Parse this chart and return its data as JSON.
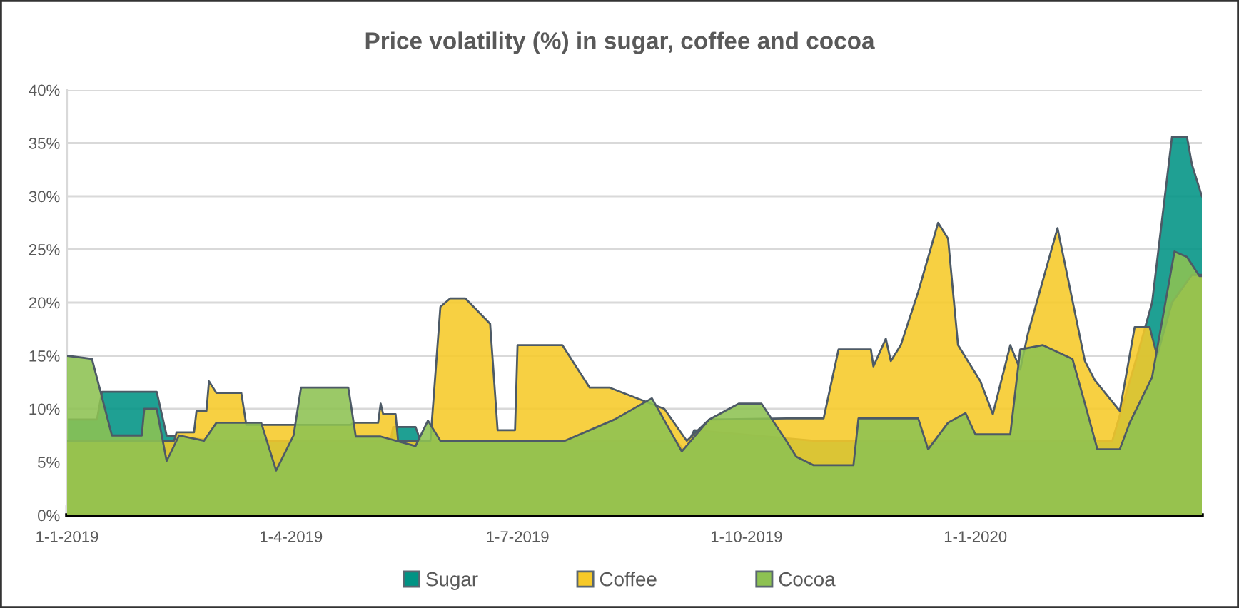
{
  "chart_data": {
    "type": "area",
    "title": "Price volatility (%) in sugar, coffee and cocoa",
    "xlim": [
      "2019-01-01",
      "2020-04-01"
    ],
    "xticks": [
      {
        "value": "2019-01-01",
        "label": "1-1-2019"
      },
      {
        "value": "2019-04-01",
        "label": "1-4-2019"
      },
      {
        "value": "2019-07-01",
        "label": "1-7-2019"
      },
      {
        "value": "2019-10-01",
        "label": "1-10-2019"
      },
      {
        "value": "2020-01-01",
        "label": "1-1-2020"
      }
    ],
    "ylim": [
      0,
      40
    ],
    "yticks": [
      {
        "value": 0,
        "label": "0%"
      },
      {
        "value": 5,
        "label": "5%"
      },
      {
        "value": 10,
        "label": "10%"
      },
      {
        "value": 15,
        "label": "15%"
      },
      {
        "value": 20,
        "label": "20%"
      },
      {
        "value": 25,
        "label": "25%"
      },
      {
        "value": 30,
        "label": "30%"
      },
      {
        "value": 35,
        "label": "35%"
      },
      {
        "value": 40,
        "label": "40%"
      }
    ],
    "grid": "y",
    "legend": "bottom",
    "series": [
      {
        "name": "Sugar",
        "color": "#009384",
        "x": [
          "2019-01-01",
          "2019-01-13",
          "2019-01-15",
          "2019-02-06",
          "2019-02-10",
          "2019-03-02",
          "2019-05-11",
          "2019-05-12",
          "2019-05-21",
          "2019-05-23",
          "2019-09-03",
          "2019-09-06",
          "2019-09-10",
          "2019-10-28",
          "2020-02-25",
          "2020-03-06",
          "2020-03-12",
          "2020-03-20",
          "2020-03-26",
          "2020-03-28",
          "2020-04-01"
        ],
        "values": [
          9,
          9,
          11.6,
          11.6,
          7.5,
          7,
          7,
          8.3,
          8.3,
          7,
          7,
          6,
          8,
          7,
          7,
          15,
          20,
          35.6,
          35.6,
          33,
          30
        ]
      },
      {
        "name": "Coffee",
        "color": "#f6c928",
        "x": [
          "2019-01-01",
          "2019-02-13",
          "2019-02-14",
          "2019-02-21",
          "2019-02-22",
          "2019-02-26",
          "2019-02-27",
          "2019-03-02",
          "2019-03-12",
          "2019-03-14",
          "2019-04-25",
          "2019-04-26",
          "2019-05-06",
          "2019-05-07",
          "2019-05-08",
          "2019-05-13",
          "2019-05-14",
          "2019-05-27",
          "2019-05-31",
          "2019-06-04",
          "2019-06-10",
          "2019-06-20",
          "2019-06-23",
          "2019-06-30",
          "2019-07-01",
          "2019-07-19",
          "2019-07-30",
          "2019-08-07",
          "2019-08-29",
          "2019-09-07",
          "2019-09-16",
          "2019-10-17",
          "2019-11-01",
          "2019-11-07",
          "2019-11-20",
          "2019-11-21",
          "2019-11-26",
          "2019-11-28",
          "2019-12-02",
          "2019-12-09",
          "2019-12-17",
          "2019-12-21",
          "2019-12-25",
          "2020-01-03",
          "2020-01-08",
          "2020-01-15",
          "2020-01-19",
          "2020-01-22",
          "2020-02-03",
          "2020-02-14",
          "2020-02-18",
          "2020-02-28",
          "2020-03-05",
          "2020-03-11",
          "2020-03-14",
          "2020-03-20",
          "2020-03-28",
          "2020-04-01"
        ],
        "values": [
          7,
          7,
          7.8,
          7.8,
          9.8,
          9.8,
          12.6,
          11.5,
          11.5,
          8.5,
          8.5,
          8.7,
          8.7,
          10.5,
          9.5,
          9.5,
          7,
          7,
          19.6,
          20.4,
          20.4,
          18,
          8,
          8,
          16,
          16,
          12,
          12,
          10,
          7,
          9,
          9.1,
          9.1,
          15.6,
          15.6,
          14,
          16.6,
          14.5,
          16,
          21,
          27.5,
          26,
          16,
          12.6,
          9.5,
          16,
          13.7,
          17,
          27,
          14.5,
          12.7,
          9.8,
          17.7,
          17.7,
          15,
          20,
          22.6,
          22.6
        ]
      },
      {
        "name": "Cocoa",
        "color": "#8dc152",
        "x": [
          "2019-01-01",
          "2019-01-11",
          "2019-01-14",
          "2019-01-19",
          "2019-01-31",
          "2019-02-01",
          "2019-02-06",
          "2019-02-10",
          "2019-02-15",
          "2019-02-25",
          "2019-03-02",
          "2019-03-20",
          "2019-03-26",
          "2019-04-02",
          "2019-04-05",
          "2019-04-24",
          "2019-04-27",
          "2019-05-07",
          "2019-05-21",
          "2019-05-26",
          "2019-05-31",
          "2019-07-20",
          "2019-08-09",
          "2019-08-24",
          "2019-09-05",
          "2019-09-16",
          "2019-09-28",
          "2019-10-07",
          "2019-10-17",
          "2019-10-21",
          "2019-10-28",
          "2019-11-13",
          "2019-11-15",
          "2019-12-09",
          "2019-12-13",
          "2019-12-21",
          "2019-12-28",
          "2020-01-01",
          "2020-01-15",
          "2020-01-19",
          "2020-01-28",
          "2020-02-09",
          "2020-02-14",
          "2020-02-19",
          "2020-02-28",
          "2020-03-03",
          "2020-03-12",
          "2020-03-21",
          "2020-03-26",
          "2020-03-31",
          "2020-04-01"
        ],
        "values": [
          15,
          14.7,
          12,
          7.5,
          7.5,
          10,
          10,
          5.1,
          7.5,
          7,
          8.7,
          8.7,
          4.2,
          7.5,
          12,
          12,
          7.4,
          7.4,
          6.5,
          8.9,
          7,
          7,
          9,
          11,
          6,
          9,
          10.5,
          10.5,
          7,
          5.5,
          4.7,
          4.7,
          9.1,
          9.1,
          6.2,
          8.7,
          9.6,
          7.6,
          7.6,
          15.6,
          16,
          14.7,
          10.5,
          6.2,
          6.2,
          8.7,
          13,
          24.8,
          24.3,
          22.5,
          22.5
        ]
      }
    ]
  }
}
